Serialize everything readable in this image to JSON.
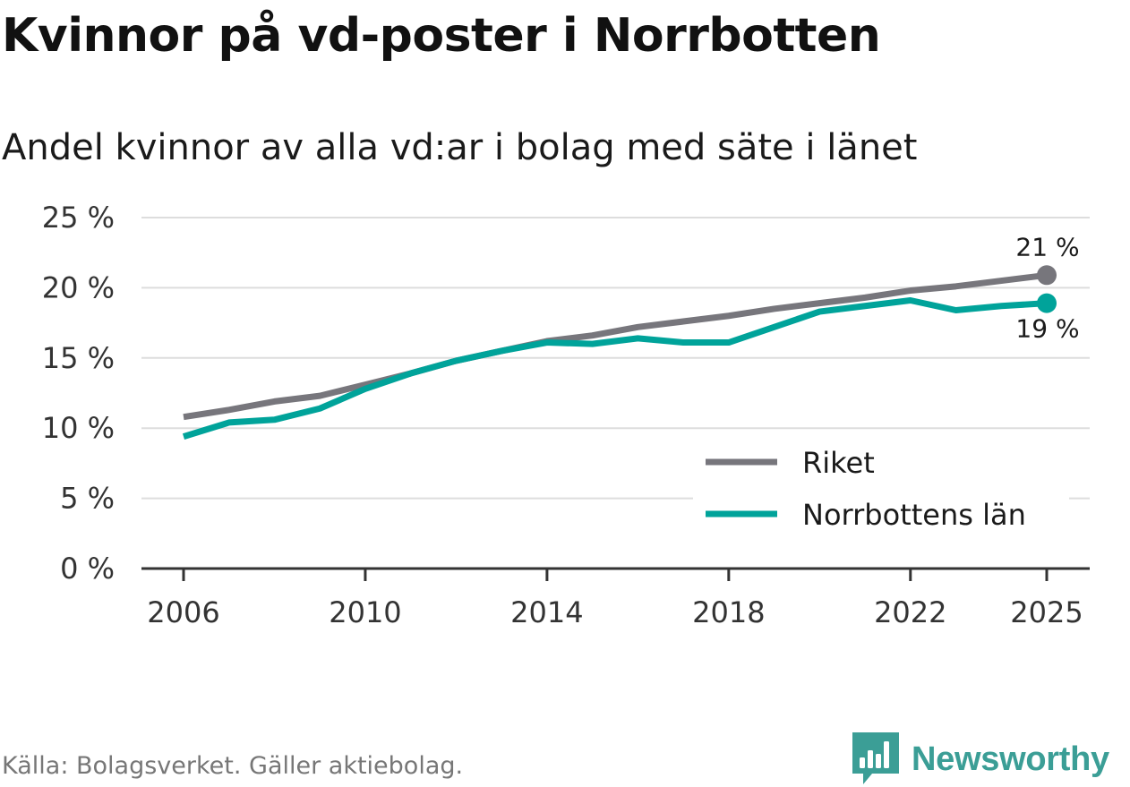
{
  "title": "Kvinnor på vd-poster i Norrbotten",
  "subtitle": "Andel kvinnor av alla vd:ar i bolag med säte i länet",
  "source": "Källa: Bolagsverket. Gäller aktiebolag.",
  "brand": {
    "name": "Newsworthy",
    "icon": "newsworthy-logo-icon",
    "color": "#3b9e96"
  },
  "chart_data": {
    "type": "line",
    "title": "Kvinnor på vd-poster i Norrbotten",
    "subtitle": "Andel kvinnor av alla vd:ar i bolag med säte i länet",
    "xlabel": "",
    "ylabel": "",
    "ylim": [
      0,
      25
    ],
    "xlim": [
      2006,
      2025
    ],
    "grid": true,
    "legend_position": "bottom-right",
    "x": [
      2006,
      2007,
      2008,
      2009,
      2010,
      2011,
      2012,
      2013,
      2014,
      2015,
      2016,
      2017,
      2018,
      2019,
      2020,
      2021,
      2022,
      2023,
      2024,
      2025
    ],
    "x_ticks": [
      2006,
      2010,
      2014,
      2018,
      2022,
      2025
    ],
    "x_tick_labels": [
      "2006",
      "2010",
      "2014",
      "2018",
      "2022",
      "2025"
    ],
    "y_ticks": [
      0,
      5,
      10,
      15,
      20,
      25
    ],
    "y_tick_labels": [
      "0 %",
      "5 %",
      "10 %",
      "15 %",
      "20 %",
      "25 %"
    ],
    "series": [
      {
        "name": "Riket",
        "color": "#77767c",
        "values": [
          10.8,
          11.3,
          11.9,
          12.3,
          13.1,
          13.9,
          14.8,
          15.5,
          16.2,
          16.6,
          17.2,
          17.6,
          18.0,
          18.5,
          18.9,
          19.3,
          19.8,
          20.1,
          20.5,
          20.9
        ],
        "end_label": "21 %"
      },
      {
        "name": "Norrbottens län",
        "color": "#00a39a",
        "values": [
          9.4,
          10.4,
          10.6,
          11.4,
          12.8,
          13.9,
          14.8,
          15.5,
          16.1,
          16.0,
          16.4,
          16.1,
          16.1,
          17.2,
          18.3,
          18.7,
          19.1,
          18.4,
          18.7,
          18.9
        ],
        "end_label": "19 %"
      }
    ]
  }
}
